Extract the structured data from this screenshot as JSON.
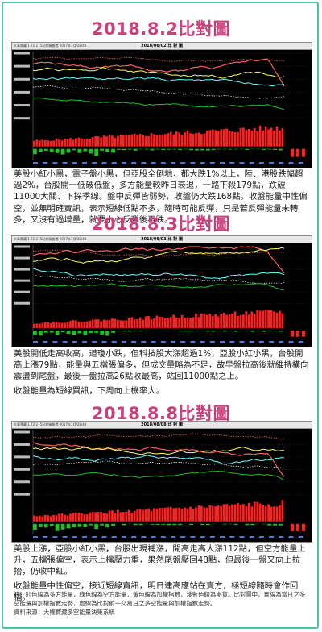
{
  "sections": [
    {
      "title": "2018.8.2比對圖",
      "chart": {
        "window_label": "大華寶藏 1.72.2 [55]期貨報價 2017年7月/28/48",
        "date_label": "2018/08/02  比 對 圖",
        "colors": {
          "line_top": "#ff6060",
          "line_mid": "#ffff60",
          "line_cyan": "#60ffff",
          "line_white": "#ffffff",
          "bar_up": "#ff2020",
          "bar_down": "#20c020"
        }
      },
      "text": [
        "美股小紅小黑，電子盤小黑，但亞股全倒地，都大跌1%以上，陸、港股跌幅超過2%，台股開一低破低盤，多方能量較昨日衰退，一路下殺179點，跌破11000大關、下探季線。盤中反彈皆弱勢，收盤仍大跌168點。收盤能量中性偏空，並無明確賣訊，表示短線低點不多，隨時可能反彈，只是若反彈能量未轉多，又沒有過增量，就要小心反彈後再跌。"
      ]
    },
    {
      "title": "2018.8.3比對圖",
      "chart": {
        "window_label": "大華寶藏 1.72.2 [55]期貨報價 2017年7月/28/48",
        "date_label": "2018/08/03  比 對 圖",
        "colors": {
          "line_top": "#ff6060",
          "line_mid": "#ffff60",
          "line_cyan": "#60ffff",
          "line_white": "#ffffff",
          "bar_up": "#ff2020",
          "bar_down": "#20c020"
        }
      },
      "text": [
        "美股開低走高收高，道瓊小跌，但科技股大漲超過1%，亞股小紅小黑，台股開高上漲79點，能量與五檔張偏多，但成交量略為不足，故早盤拉高後就維持橫向震盪到尾盤，最後一盤拉高26點收最高，站回11000點之上。",
        "收盤能量為短線買訊，下周向上機率大。"
      ]
    },
    {
      "title": "2018.8.8比對圖",
      "chart": {
        "window_label": "大華寶藏 1.72.2 [55]期貨報價 2017年7月/28/48",
        "date_label": "2018/08/08  比 對 圖",
        "colors": {
          "line_top": "#ff6060",
          "line_mid": "#ffff60",
          "line_cyan": "#60ffff",
          "line_white": "#ffffff",
          "bar_up": "#ff2020",
          "bar_down": "#20c020"
        }
      },
      "text": [
        "美股上漲，亞股小紅小黑，台股出現補漲，開高走高大漲112點，但空方能量上升，五檔張偏空，表示上檔壓力重，果然尾盤壓回48點，但最後一盤又向上拉抬，仍收中紅。",
        "收盤能量中性偏空，接近短線賣訊，明日達高應站在賣方，極短線隨時會作回檔。"
      ]
    }
  ],
  "footnote": {
    "lines": [
      "註：紅色線為多方能量，綠色線為空方能量，黃色線為加權指數，淺藍色線為期貨。比對圖中，實線為當日之多空能量與加權指數走勢，虛線為比對前一交易日之多空能量與加權指數走勢。",
      "資料來源：大權寶藏多空能量決策系統"
    ]
  }
}
